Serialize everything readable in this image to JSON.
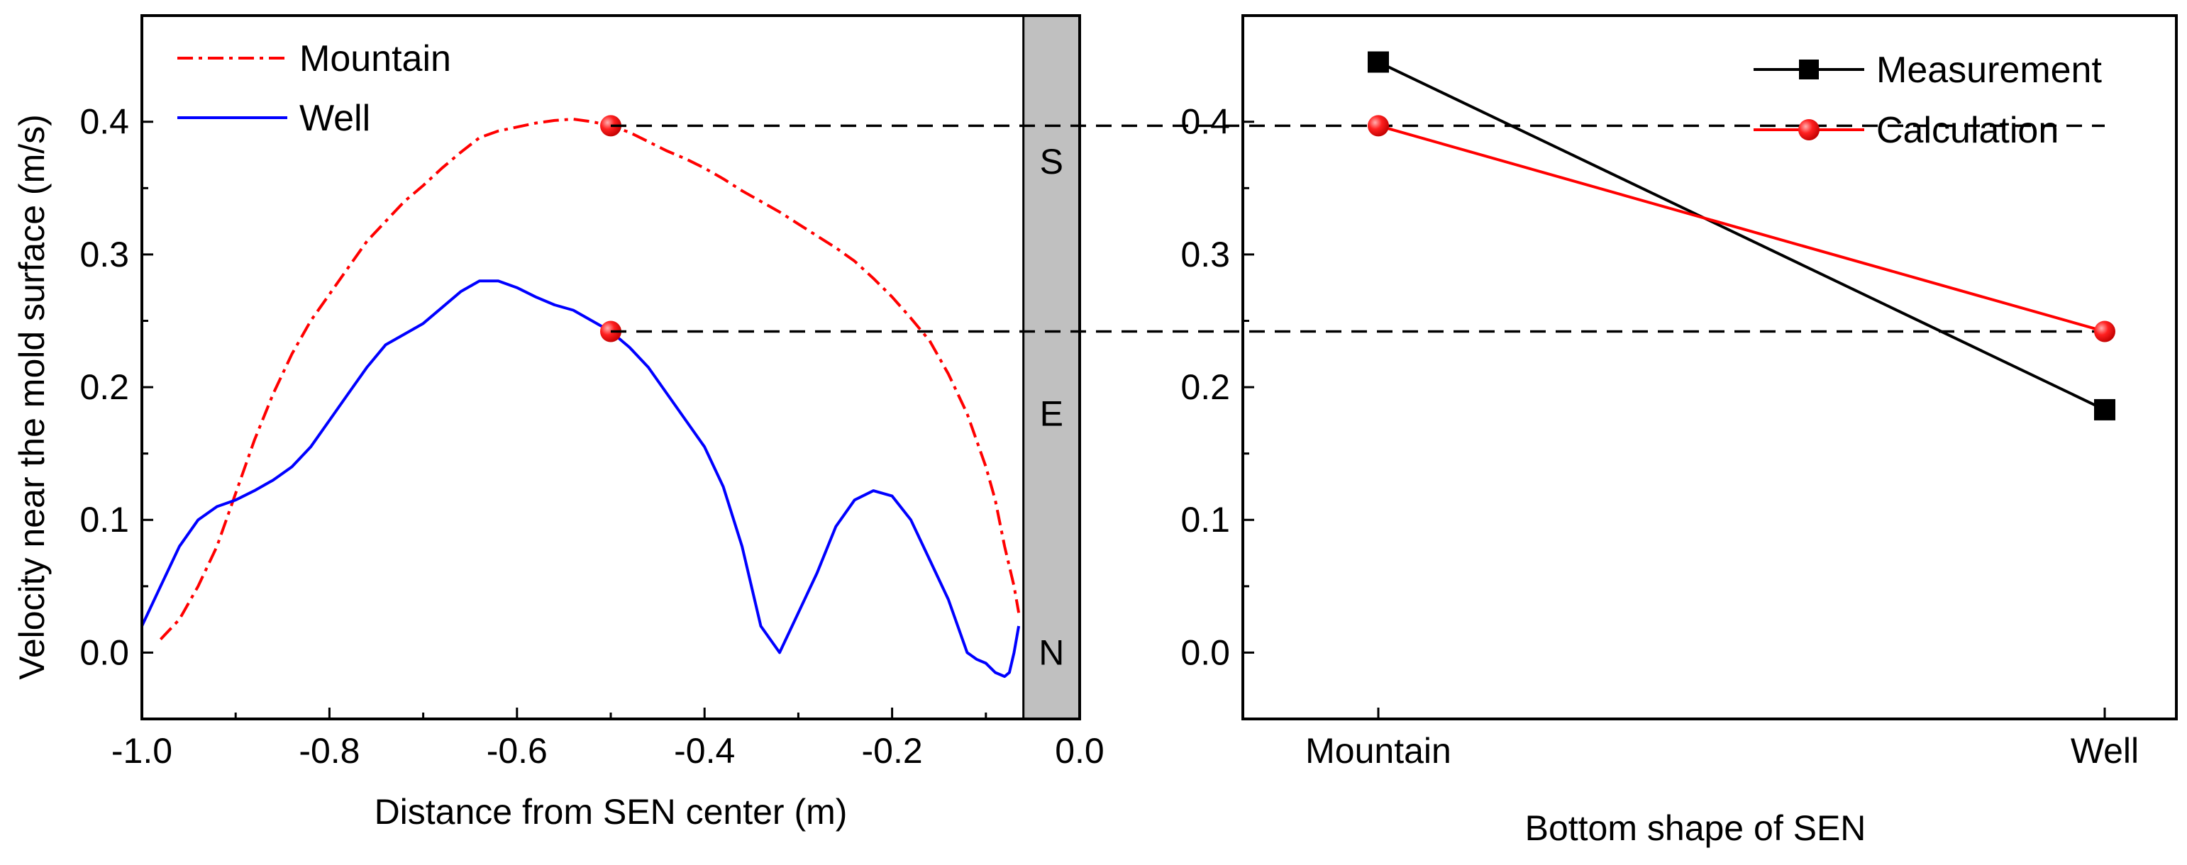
{
  "chart_data": [
    {
      "type": "line",
      "xlabel": "Distance from SEN center (m)",
      "ylabel": "Velocity near the mold surface (m/s)",
      "xlim": [
        -1.0,
        0.0
      ],
      "ylim": [
        -0.05,
        0.48
      ],
      "xticks": [
        -1.0,
        -0.8,
        -0.6,
        -0.4,
        -0.2,
        0.0
      ],
      "xtick_labels": [
        "-1.0",
        "-0.8",
        "-0.6",
        "-0.4",
        "-0.2",
        "0.0"
      ],
      "yticks": [
        0.0,
        0.1,
        0.2,
        0.3,
        0.4
      ],
      "ytick_labels": [
        "0.0",
        "0.1",
        "0.2",
        "0.3",
        "0.4"
      ],
      "sen_region": {
        "x_from": -0.06,
        "x_to": 0.0,
        "labels": [
          "S",
          "E",
          "N"
        ],
        "label_y": [
          0.37,
          0.18,
          0.0
        ]
      },
      "series": [
        {
          "name": "Mountain",
          "color": "#ff0000",
          "style": "dash-dot",
          "x": [
            -0.98,
            -0.96,
            -0.94,
            -0.92,
            -0.9,
            -0.88,
            -0.86,
            -0.84,
            -0.82,
            -0.8,
            -0.78,
            -0.76,
            -0.74,
            -0.72,
            -0.7,
            -0.68,
            -0.66,
            -0.64,
            -0.62,
            -0.6,
            -0.58,
            -0.56,
            -0.54,
            -0.52,
            -0.5,
            -0.48,
            -0.46,
            -0.44,
            -0.42,
            -0.4,
            -0.38,
            -0.36,
            -0.34,
            -0.32,
            -0.3,
            -0.28,
            -0.26,
            -0.24,
            -0.22,
            -0.2,
            -0.18,
            -0.16,
            -0.14,
            -0.12,
            -0.1,
            -0.09,
            -0.08,
            -0.07,
            -0.065
          ],
          "y": [
            0.01,
            0.025,
            0.05,
            0.08,
            0.12,
            0.16,
            0.195,
            0.225,
            0.25,
            0.27,
            0.29,
            0.31,
            0.325,
            0.34,
            0.352,
            0.365,
            0.377,
            0.388,
            0.393,
            0.396,
            0.399,
            0.401,
            0.402,
            0.4,
            0.397,
            0.392,
            0.385,
            0.378,
            0.372,
            0.365,
            0.357,
            0.348,
            0.34,
            0.332,
            0.323,
            0.314,
            0.305,
            0.295,
            0.282,
            0.268,
            0.252,
            0.235,
            0.21,
            0.18,
            0.14,
            0.115,
            0.08,
            0.05,
            0.03
          ]
        },
        {
          "name": "Well",
          "color": "#0000ff",
          "style": "solid",
          "x": [
            -1.0,
            -0.98,
            -0.96,
            -0.94,
            -0.92,
            -0.9,
            -0.88,
            -0.86,
            -0.84,
            -0.82,
            -0.8,
            -0.78,
            -0.76,
            -0.74,
            -0.72,
            -0.7,
            -0.68,
            -0.66,
            -0.64,
            -0.62,
            -0.6,
            -0.58,
            -0.56,
            -0.54,
            -0.52,
            -0.5,
            -0.48,
            -0.46,
            -0.44,
            -0.42,
            -0.4,
            -0.38,
            -0.36,
            -0.34,
            -0.32,
            -0.3,
            -0.28,
            -0.26,
            -0.24,
            -0.22,
            -0.2,
            -0.18,
            -0.16,
            -0.14,
            -0.12,
            -0.11,
            -0.1,
            -0.09,
            -0.08,
            -0.075,
            -0.07,
            -0.065
          ],
          "y": [
            0.02,
            0.05,
            0.08,
            0.1,
            0.11,
            0.115,
            0.122,
            0.13,
            0.14,
            0.155,
            0.175,
            0.195,
            0.215,
            0.232,
            0.24,
            0.248,
            0.26,
            0.272,
            0.28,
            0.28,
            0.275,
            0.268,
            0.262,
            0.258,
            0.25,
            0.242,
            0.23,
            0.215,
            0.195,
            0.175,
            0.155,
            0.125,
            0.08,
            0.02,
            0.0,
            0.03,
            0.06,
            0.095,
            0.115,
            0.122,
            0.118,
            0.1,
            0.07,
            0.04,
            0.0,
            -0.005,
            -0.008,
            -0.015,
            -0.018,
            -0.015,
            0.0,
            0.02
          ]
        }
      ],
      "highlight_points": [
        {
          "series": "Mountain",
          "x": -0.5,
          "y": 0.397,
          "color": "#ff0000"
        },
        {
          "series": "Well",
          "x": -0.5,
          "y": 0.242,
          "color": "#ff0000"
        }
      ],
      "reference_lines": [
        {
          "y": 0.397,
          "style": "dashed"
        },
        {
          "y": 0.242,
          "style": "dashed"
        }
      ],
      "legend": {
        "placement": "top-left",
        "entries": [
          "Mountain",
          "Well"
        ]
      }
    },
    {
      "type": "line",
      "xlabel": "Bottom shape of  SEN",
      "ylabel": "",
      "categories": [
        "Mountain",
        "Well"
      ],
      "ylim": [
        -0.05,
        0.48
      ],
      "yticks": [
        0.0,
        0.1,
        0.2,
        0.3,
        0.4
      ],
      "ytick_labels": [
        "0.0",
        "0.1",
        "0.2",
        "0.3",
        "0.4"
      ],
      "series": [
        {
          "name": "Measurement",
          "color": "#000000",
          "marker": "square",
          "values": [
            0.445,
            0.183
          ]
        },
        {
          "name": "Calculation",
          "color": "#ff0000",
          "marker": "circle",
          "values": [
            0.397,
            0.242
          ]
        }
      ],
      "legend": {
        "placement": "top-right",
        "entries": [
          "Measurement",
          "Calculation"
        ]
      }
    }
  ]
}
